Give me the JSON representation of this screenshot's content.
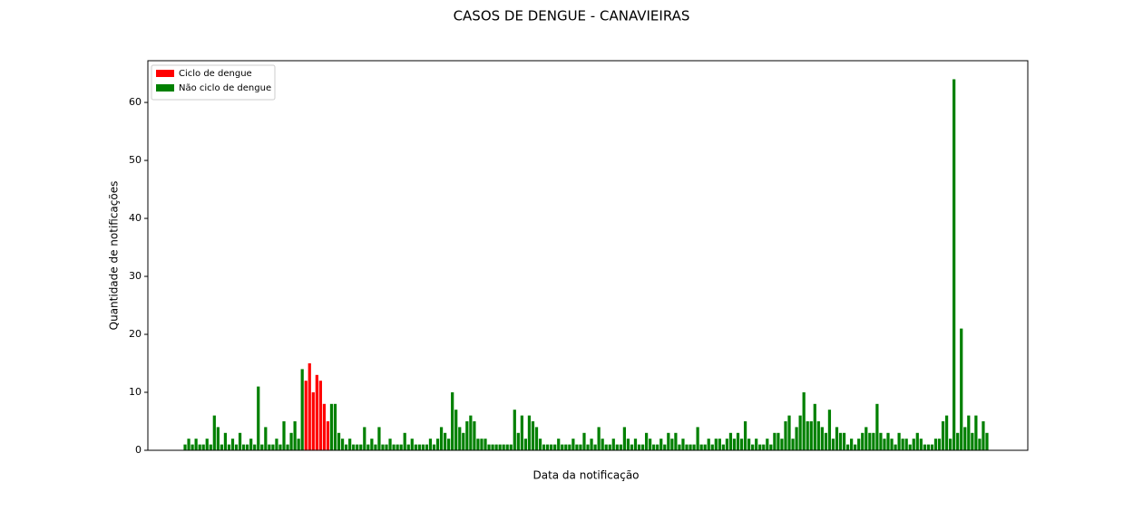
{
  "chart_data": {
    "type": "bar",
    "title": "CASOS DE DENGUE - CANAVIEIRAS",
    "xlabel": "Data da notificação",
    "ylabel": "Quantidade de notificações",
    "legend": "upper left",
    "ylim": [
      0,
      67.2
    ],
    "yticks": [
      0,
      10,
      20,
      30,
      40,
      50,
      60
    ],
    "categories": [
      null,
      null,
      null,
      null,
      null,
      null,
      null,
      null,
      null,
      null,
      null,
      null,
      null,
      null,
      null,
      null,
      null,
      null,
      null,
      null,
      null,
      null,
      null,
      null,
      null,
      null,
      null,
      null,
      null,
      null,
      null,
      null,
      null,
      null,
      null,
      null,
      null,
      null,
      null,
      null,
      null,
      null,
      null,
      null,
      null,
      null,
      null,
      null,
      null,
      null,
      null,
      null,
      null,
      null,
      null,
      null,
      null,
      null,
      null,
      null,
      null,
      null,
      null,
      null,
      null,
      null,
      null,
      null,
      null,
      null,
      null,
      null,
      null,
      null,
      null,
      null,
      null,
      null,
      null,
      null,
      null,
      null,
      null,
      null,
      null,
      null,
      null,
      null,
      null,
      null,
      null,
      null,
      null,
      null,
      null,
      null,
      null,
      null,
      null,
      null,
      null,
      null,
      null,
      null,
      null,
      null,
      null,
      null,
      null,
      null,
      null,
      null,
      null,
      null,
      null,
      null,
      null,
      null,
      null,
      null,
      null,
      null,
      null,
      null,
      null,
      null,
      null,
      null,
      null,
      null,
      null,
      null,
      null,
      null,
      null,
      null,
      null,
      null,
      null,
      null,
      null,
      null,
      null,
      null,
      null,
      null,
      null,
      null,
      null,
      null,
      null,
      null,
      null,
      null,
      null,
      null,
      null,
      null,
      null,
      null,
      null,
      null,
      null,
      null,
      null,
      null,
      null,
      null,
      null,
      null,
      null,
      null,
      null,
      null,
      null,
      null,
      null,
      null,
      null,
      null,
      null,
      null,
      null,
      null,
      null,
      null,
      null,
      null,
      null,
      null,
      null,
      null,
      null,
      null,
      null,
      null,
      null,
      null,
      null,
      null,
      null,
      null,
      null,
      null,
      null,
      null,
      null,
      null,
      null,
      null,
      null,
      null,
      null,
      null,
      null,
      null,
      null,
      null,
      null,
      null
    ],
    "series": [
      {
        "name": "Ciclo de dengue",
        "color": "#ff0000",
        "values": [
          null,
          null,
          null,
          null,
          null,
          null,
          null,
          null,
          null,
          null,
          null,
          null,
          null,
          null,
          null,
          null,
          null,
          null,
          null,
          null,
          null,
          null,
          null,
          null,
          null,
          null,
          null,
          null,
          null,
          null,
          null,
          null,
          null,
          12,
          15,
          10,
          13,
          12,
          8,
          5,
          null,
          null,
          null,
          null,
          null,
          null,
          null,
          null,
          null,
          null,
          null,
          null,
          null,
          null,
          null,
          null,
          null,
          null,
          null,
          null,
          null,
          null,
          null,
          null,
          null,
          null,
          null,
          null,
          null,
          null,
          null,
          null,
          null,
          null,
          null,
          null,
          null,
          null,
          null,
          null,
          null,
          null,
          null,
          null,
          null,
          null,
          null,
          null,
          null,
          null,
          null,
          null,
          null,
          null,
          null,
          null,
          null,
          null,
          null,
          null,
          null,
          null,
          null,
          null,
          null,
          null,
          null,
          null,
          null,
          null,
          null,
          null,
          null,
          null,
          null,
          null,
          null,
          null,
          null,
          null,
          null,
          null,
          null,
          null,
          null,
          null,
          null,
          null,
          null,
          null,
          null,
          null,
          null,
          null,
          null,
          null,
          null,
          null,
          null,
          null,
          null,
          null,
          null,
          null,
          null,
          null,
          null,
          null,
          null,
          null,
          null,
          null,
          null,
          null,
          null,
          null,
          null,
          null,
          null,
          null,
          null,
          null,
          null,
          null,
          null,
          null,
          null,
          null,
          null,
          null,
          null,
          null,
          null,
          null,
          null,
          null,
          null,
          null,
          null,
          null,
          null,
          null,
          null,
          null,
          null,
          null,
          null,
          null,
          null,
          null,
          null,
          null,
          null,
          null,
          null,
          null,
          null,
          null,
          null,
          null,
          null,
          null,
          null,
          null,
          null,
          null,
          null,
          null,
          null,
          null,
          null,
          null,
          null,
          null,
          null,
          null,
          null,
          null,
          null,
          null
        ]
      },
      {
        "name": "Não ciclo de dengue",
        "color": "#008000",
        "values": [
          1,
          2,
          1,
          2,
          1,
          1,
          2,
          1,
          6,
          4,
          1,
          3,
          1,
          2,
          1,
          3,
          1,
          1,
          2,
          1,
          11,
          1,
          4,
          1,
          1,
          2,
          1,
          5,
          1,
          3,
          5,
          2,
          14,
          null,
          null,
          null,
          null,
          null,
          null,
          null,
          8,
          8,
          3,
          2,
          1,
          2,
          1,
          1,
          1,
          4,
          1,
          2,
          1,
          4,
          1,
          1,
          2,
          1,
          1,
          1,
          3,
          1,
          2,
          1,
          1,
          1,
          1,
          2,
          1,
          2,
          4,
          3,
          2,
          10,
          7,
          4,
          3,
          5,
          6,
          5,
          2,
          2,
          2,
          1,
          1,
          1,
          1,
          1,
          1,
          1,
          7,
          3,
          6,
          2,
          6,
          5,
          4,
          2,
          1,
          1,
          1,
          1,
          2,
          1,
          1,
          1,
          2,
          1,
          1,
          3,
          1,
          2,
          1,
          4,
          2,
          1,
          1,
          2,
          1,
          1,
          4,
          2,
          1,
          2,
          1,
          1,
          3,
          2,
          1,
          1,
          2,
          1,
          3,
          2,
          3,
          1,
          2,
          1,
          1,
          1,
          4,
          1,
          1,
          2,
          1,
          2,
          2,
          1,
          2,
          3,
          2,
          3,
          2,
          5,
          2,
          1,
          2,
          1,
          1,
          2,
          1,
          3,
          3,
          2,
          5,
          6,
          2,
          4,
          6,
          10,
          5,
          5,
          8,
          5,
          4,
          3,
          7,
          2,
          4,
          3,
          3,
          1,
          2,
          1,
          2,
          3,
          4,
          3,
          3,
          8,
          3,
          2,
          3,
          2,
          1,
          3,
          2,
          2,
          1,
          2,
          3,
          2,
          1,
          1,
          1,
          2,
          2,
          5,
          6,
          2,
          64,
          3,
          21,
          4,
          6,
          3,
          6,
          2,
          5,
          3
        ]
      }
    ]
  }
}
